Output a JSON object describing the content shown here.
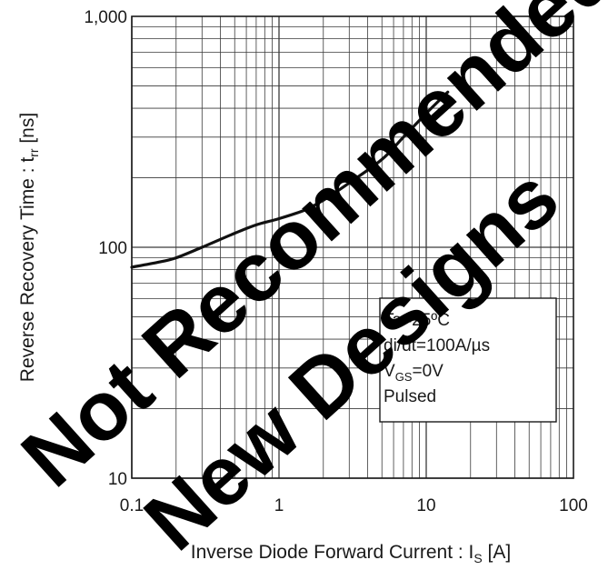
{
  "chart_data": {
    "type": "line",
    "scale": {
      "x": "log",
      "y": "log"
    },
    "xlim": [
      0.1,
      100
    ],
    "ylim": [
      10,
      1000
    ],
    "grid": true,
    "x_ticks": [
      {
        "value": 0.1,
        "label": "0.1"
      },
      {
        "value": 1,
        "label": "1"
      },
      {
        "value": 10,
        "label": "10"
      },
      {
        "value": 100,
        "label": "100"
      }
    ],
    "y_ticks": [
      {
        "value": 10,
        "label": "10"
      },
      {
        "value": 100,
        "label": "100"
      },
      {
        "value": 1000,
        "label": "1,000"
      }
    ],
    "xlabel": {
      "main": "Inverse Diode  Forward Current : I",
      "sub": "S",
      "unit": " [A]"
    },
    "ylabel": {
      "main": "Reverse Recovery Time : t",
      "sub": "rr",
      "unit": " [ns]"
    },
    "series": [
      {
        "color": "#111111",
        "x": [
          0.1,
          0.15,
          0.2,
          0.3,
          0.5,
          0.7,
          1.0,
          1.5,
          2.0,
          3.0,
          5.0,
          7.0,
          10.0,
          14.0
        ],
        "y": [
          82,
          86,
          90,
          100,
          115,
          125,
          133,
          145,
          160,
          190,
          240,
          300,
          380,
          470
        ]
      }
    ],
    "annotation": {
      "lines": [
        {
          "text": "Ta=25ºC"
        },
        {
          "text": "di/dt=100A/µs"
        },
        {
          "main": "V",
          "sub": "GS",
          "rest": "=0V"
        },
        {
          "text": "Pulsed"
        }
      ],
      "placement": "lower-right"
    },
    "watermark": {
      "lines": [
        "Not Recommended for",
        "New Designs"
      ],
      "color": "#000000"
    }
  }
}
